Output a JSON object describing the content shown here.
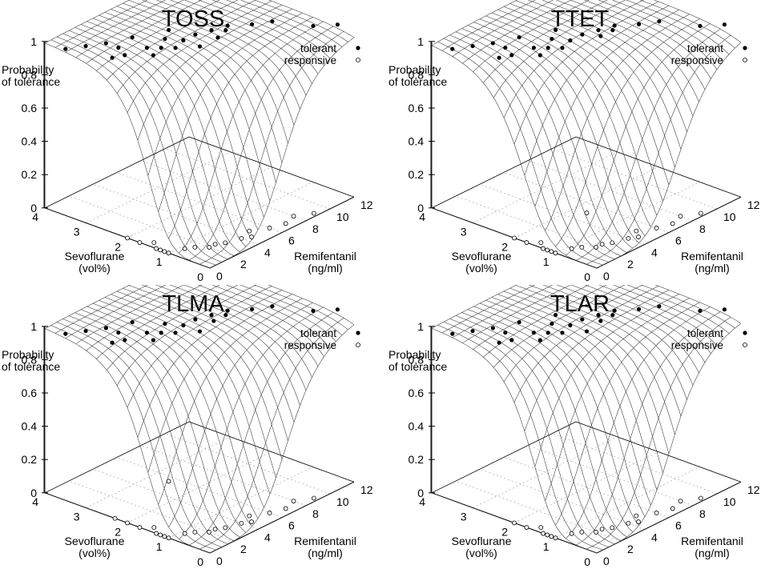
{
  "figure": {
    "legend_labels": {
      "tolerant": "tolerant",
      "responsive": "responsive"
    },
    "z_axis_label": [
      "Probability",
      "of tolerance"
    ],
    "sevo_axis_label": [
      "Sevoflurane",
      "(vol%)"
    ],
    "remi_axis_label": [
      "Remifentanil",
      "(ng/ml)"
    ],
    "z_ticks": [
      "0",
      "0.2",
      "0.4",
      "0.6",
      "0.8",
      "1"
    ],
    "sevo_ticks": [
      "0",
      "1",
      "2",
      "3",
      "4"
    ],
    "remi_ticks": [
      "0",
      "2",
      "4",
      "6",
      "8",
      "10",
      "12"
    ]
  },
  "chart_data": [
    {
      "type": "surface3d",
      "title": "TOSS",
      "xlabel": "Remifentanil (ng/ml)",
      "xlim": [
        0,
        12
      ],
      "ylabel": "Sevoflurane (vol%)",
      "ylim": [
        0,
        4
      ],
      "zlabel": "Probability of tolerance",
      "zlim": [
        0,
        1
      ],
      "model": {
        "sevo50": 1.6,
        "remi50": 6.4,
        "gamma": 5
      },
      "legend": "top-right",
      "series": [
        {
          "name": "tolerant",
          "marker": "filled-circle",
          "points": [
            [
              0,
              3.5,
              1
            ],
            [
              1,
              3.3,
              1
            ],
            [
              2,
              3.1,
              1
            ],
            [
              0.8,
              2.6,
              1
            ],
            [
              1.5,
              2.5,
              1
            ],
            [
              2.5,
              2.1,
              1
            ],
            [
              3,
              2.4,
              1
            ],
            [
              3.5,
              2.2,
              1
            ],
            [
              4,
              2.0,
              1
            ],
            [
              4.5,
              2.4,
              1
            ],
            [
              5,
              2.1,
              1
            ],
            [
              5,
              1.7,
              1
            ],
            [
              6,
              2.1,
              1
            ],
            [
              6.5,
              1.7,
              1
            ],
            [
              7,
              2.0,
              1
            ],
            [
              7.5,
              1.8,
              1
            ],
            [
              8,
              1.9,
              1
            ],
            [
              9,
              1.6,
              1
            ],
            [
              10,
              1.4,
              1
            ],
            [
              11,
              0.7,
              1
            ],
            [
              12,
              0.4,
              1
            ],
            [
              2,
              2.8,
              1
            ],
            [
              3.5,
              2.9,
              1
            ],
            [
              5.5,
              2.6,
              1
            ]
          ]
        },
        {
          "name": "responsive",
          "marker": "open-circle",
          "points": [
            [
              0,
              1.0,
              0
            ],
            [
              0,
              1.1,
              0
            ],
            [
              0,
              1.2,
              0
            ],
            [
              0,
              1.3,
              0
            ],
            [
              0.5,
              1.5,
              0
            ],
            [
              1,
              0.9,
              0
            ],
            [
              1.5,
              0.8,
              0
            ],
            [
              2,
              0.6,
              0
            ],
            [
              2.5,
              0.6,
              0
            ],
            [
              3,
              0.5,
              0
            ],
            [
              4,
              0.4,
              0
            ],
            [
              4.5,
              0.3,
              0
            ],
            [
              5,
              0.5,
              0
            ],
            [
              6,
              0.3,
              0
            ],
            [
              7,
              0.2,
              0
            ],
            [
              8,
              0.3,
              0
            ],
            [
              9,
              0.1,
              0
            ],
            [
              0,
              2.0,
              0
            ],
            [
              0,
              1.7,
              0
            ]
          ]
        }
      ]
    },
    {
      "type": "surface3d",
      "title": "TTET",
      "xlabel": "Remifentanil (ng/ml)",
      "xlim": [
        0,
        12
      ],
      "ylabel": "Sevoflurane (vol%)",
      "ylim": [
        0,
        4
      ],
      "zlabel": "Probability of tolerance",
      "zlim": [
        0,
        1
      ],
      "model": {
        "sevo50": 1.9,
        "remi50": 7.2,
        "gamma": 5
      },
      "legend": "top-right",
      "series": [
        {
          "name": "tolerant",
          "marker": "filled-circle",
          "points": [
            [
              0,
              3.5,
              1
            ],
            [
              1,
              3.3,
              1
            ],
            [
              2,
              3.1,
              1
            ],
            [
              0.8,
              2.6,
              1
            ],
            [
              1.5,
              2.5,
              1
            ],
            [
              2.5,
              2.1,
              1
            ],
            [
              3,
              2.4,
              1
            ],
            [
              3.5,
              2.2,
              1
            ],
            [
              4,
              2.0,
              1
            ],
            [
              4.5,
              2.4,
              1
            ],
            [
              5,
              2.1,
              1
            ],
            [
              6,
              2.1,
              1
            ],
            [
              6.5,
              1.8,
              1
            ],
            [
              7,
              2.0,
              1
            ],
            [
              7.5,
              1.8,
              1
            ],
            [
              8,
              1.9,
              1
            ],
            [
              9,
              1.6,
              1
            ],
            [
              10,
              1.4,
              1
            ],
            [
              11,
              0.7,
              1
            ],
            [
              12,
              0.4,
              1
            ],
            [
              2,
              2.8,
              1
            ],
            [
              3.5,
              2.9,
              1
            ],
            [
              5.5,
              2.6,
              1
            ]
          ]
        },
        {
          "name": "responsive",
          "marker": "open-circle",
          "points": [
            [
              0,
              1.0,
              0
            ],
            [
              0,
              1.1,
              0
            ],
            [
              0,
              1.2,
              0
            ],
            [
              0,
              1.3,
              0
            ],
            [
              0.5,
              1.5,
              0
            ],
            [
              1,
              0.9,
              0
            ],
            [
              1.5,
              0.8,
              0
            ],
            [
              2,
              0.6,
              0
            ],
            [
              2.5,
              0.6,
              0
            ],
            [
              3,
              0.5,
              0
            ],
            [
              4,
              0.4,
              0
            ],
            [
              4.5,
              0.3,
              0
            ],
            [
              5,
              0.5,
              0
            ],
            [
              6,
              0.3,
              0
            ],
            [
              7,
              0.2,
              0
            ],
            [
              8,
              0.3,
              0
            ],
            [
              9,
              0.1,
              0
            ],
            [
              0,
              2.0,
              0
            ],
            [
              0,
              1.7,
              0
            ],
            [
              5,
              1.7,
              0
            ]
          ]
        }
      ]
    },
    {
      "type": "surface3d",
      "title": "TLMA",
      "xlabel": "Remifentanil (ng/ml)",
      "xlim": [
        0,
        12
      ],
      "ylabel": "Sevoflurane (vol%)",
      "ylim": [
        0,
        4
      ],
      "zlabel": "Probability of tolerance",
      "zlim": [
        0,
        1
      ],
      "model": {
        "sevo50": 1.7,
        "remi50": 6.8,
        "gamma": 5
      },
      "legend": "top-right",
      "series": [
        {
          "name": "tolerant",
          "marker": "filled-circle",
          "points": [
            [
              0,
              3.5,
              1
            ],
            [
              1,
              3.3,
              1
            ],
            [
              2,
              3.1,
              1
            ],
            [
              0.8,
              2.6,
              1
            ],
            [
              1.5,
              2.5,
              1
            ],
            [
              2.5,
              2.1,
              1
            ],
            [
              3,
              2.4,
              1
            ],
            [
              3.5,
              2.2,
              1
            ],
            [
              4,
              2.0,
              1
            ],
            [
              4.5,
              2.4,
              1
            ],
            [
              5,
              2.1,
              1
            ],
            [
              5,
              1.7,
              1
            ],
            [
              6,
              2.1,
              1
            ],
            [
              6.5,
              1.8,
              1
            ],
            [
              7,
              2.0,
              1
            ],
            [
              7.5,
              1.8,
              1
            ],
            [
              8,
              1.9,
              1
            ],
            [
              9,
              1.6,
              1
            ],
            [
              10,
              1.4,
              1
            ],
            [
              11,
              0.7,
              1
            ],
            [
              12,
              0.4,
              1
            ],
            [
              2,
              2.8,
              1
            ],
            [
              3.5,
              2.9,
              1
            ]
          ]
        },
        {
          "name": "responsive",
          "marker": "open-circle",
          "points": [
            [
              0,
              1.0,
              0
            ],
            [
              0,
              1.1,
              0
            ],
            [
              0,
              1.2,
              0
            ],
            [
              0,
              1.3,
              0
            ],
            [
              0.5,
              1.5,
              0
            ],
            [
              1,
              0.9,
              0
            ],
            [
              1.5,
              0.8,
              0
            ],
            [
              2,
              0.6,
              0
            ],
            [
              2.5,
              0.6,
              0
            ],
            [
              3,
              0.5,
              0
            ],
            [
              4,
              0.4,
              0
            ],
            [
              4.5,
              0.3,
              0
            ],
            [
              5,
              0.5,
              0
            ],
            [
              6,
              0.3,
              0
            ],
            [
              7,
              0.2,
              0
            ],
            [
              8,
              0.3,
              0
            ],
            [
              9,
              0.1,
              0
            ],
            [
              0,
              2.0,
              0
            ],
            [
              0,
              1.7,
              0
            ],
            [
              0,
              2.3,
              0
            ],
            [
              5.5,
              2.6,
              0
            ]
          ]
        }
      ]
    },
    {
      "type": "surface3d",
      "title": "TLAR",
      "xlabel": "Remifentanil (ng/ml)",
      "xlim": [
        0,
        12
      ],
      "ylabel": "Sevoflurane (vol%)",
      "ylim": [
        0,
        4
      ],
      "zlabel": "Probability of tolerance",
      "zlim": [
        0,
        1
      ],
      "model": {
        "sevo50": 1.65,
        "remi50": 6.6,
        "gamma": 5
      },
      "legend": "top-right",
      "series": [
        {
          "name": "tolerant",
          "marker": "filled-circle",
          "points": [
            [
              0,
              3.5,
              1
            ],
            [
              1,
              3.3,
              1
            ],
            [
              2,
              3.1,
              1
            ],
            [
              0.8,
              2.6,
              1
            ],
            [
              1.5,
              2.5,
              1
            ],
            [
              2.5,
              2.1,
              1
            ],
            [
              3,
              2.4,
              1
            ],
            [
              3.5,
              2.2,
              1
            ],
            [
              4,
              2.0,
              1
            ],
            [
              4.5,
              2.4,
              1
            ],
            [
              5,
              2.1,
              1
            ],
            [
              5,
              1.7,
              1
            ],
            [
              6,
              2.1,
              1
            ],
            [
              6.5,
              1.8,
              1
            ],
            [
              7,
              2.0,
              1
            ],
            [
              7.5,
              1.8,
              1
            ],
            [
              8,
              1.9,
              1
            ],
            [
              9,
              1.6,
              1
            ],
            [
              10,
              1.4,
              1
            ],
            [
              11,
              0.7,
              1
            ],
            [
              12,
              0.4,
              1
            ],
            [
              2,
              2.8,
              1
            ],
            [
              3.5,
              2.9,
              1
            ],
            [
              5.5,
              2.6,
              1
            ]
          ]
        },
        {
          "name": "responsive",
          "marker": "open-circle",
          "points": [
            [
              0,
              1.0,
              0
            ],
            [
              0,
              1.1,
              0
            ],
            [
              0,
              1.2,
              0
            ],
            [
              0,
              1.3,
              0
            ],
            [
              0.5,
              1.5,
              0
            ],
            [
              1,
              0.9,
              0
            ],
            [
              1.5,
              0.8,
              0
            ],
            [
              2,
              0.6,
              0
            ],
            [
              2.5,
              0.6,
              0
            ],
            [
              3,
              0.5,
              0
            ],
            [
              4,
              0.4,
              0
            ],
            [
              4.5,
              0.3,
              0
            ],
            [
              5,
              0.5,
              0
            ],
            [
              6,
              0.3,
              0
            ],
            [
              7,
              0.2,
              0
            ],
            [
              8,
              0.3,
              0
            ],
            [
              9,
              0.1,
              0
            ],
            [
              0,
              2.0,
              0
            ],
            [
              0,
              1.7,
              0
            ]
          ]
        }
      ]
    }
  ]
}
